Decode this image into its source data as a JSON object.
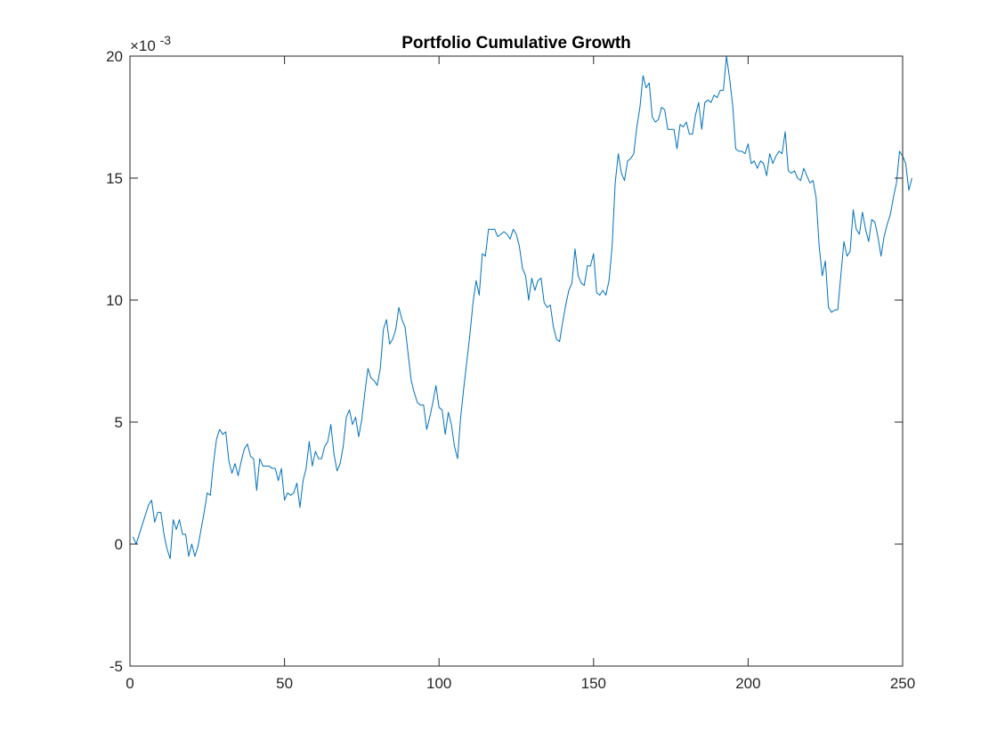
{
  "chart_data": {
    "type": "line",
    "title": "Portfolio Cumulative Growth",
    "xlabel": "",
    "ylabel": "",
    "xlim": [
      0,
      250
    ],
    "ylim": [
      -0.005,
      0.02
    ],
    "y_exponent_label": "×10",
    "y_exponent_power": "-3",
    "x_ticks": [
      {
        "value": 0,
        "label": "0"
      },
      {
        "value": 50,
        "label": "50"
      },
      {
        "value": 100,
        "label": "100"
      },
      {
        "value": 150,
        "label": "150"
      },
      {
        "value": 200,
        "label": "200"
      },
      {
        "value": 250,
        "label": "250"
      }
    ],
    "y_ticks": [
      {
        "value": -0.005,
        "label": "-5"
      },
      {
        "value": 0,
        "label": "0"
      },
      {
        "value": 0.005,
        "label": "5"
      },
      {
        "value": 0.01,
        "label": "10"
      },
      {
        "value": 0.015,
        "label": "15"
      },
      {
        "value": 0.02,
        "label": "20"
      }
    ],
    "grid": false,
    "box": true,
    "series": [
      {
        "color": "#0072BD",
        "x_start": 1,
        "x_step": 1,
        "values": [
          0.0003,
          0.0,
          0.0004,
          0.0008,
          0.0012,
          0.0016,
          0.0018,
          0.0009,
          0.0013,
          0.0013,
          0.0004,
          -0.0002,
          -0.0006,
          0.001,
          0.0006,
          0.001,
          0.0004,
          0.0004,
          -0.0005,
          0.0,
          -0.0005,
          -0.0001,
          0.0006,
          0.0013,
          0.0021,
          0.002,
          0.0033,
          0.0043,
          0.0047,
          0.0045,
          0.0046,
          0.0034,
          0.0029,
          0.0033,
          0.0028,
          0.0034,
          0.0039,
          0.0041,
          0.0036,
          0.0035,
          0.0022,
          0.0035,
          0.0032,
          0.0032,
          0.0032,
          0.0031,
          0.0031,
          0.0026,
          0.0031,
          0.0018,
          0.0021,
          0.002,
          0.0021,
          0.0025,
          0.0015,
          0.0026,
          0.0031,
          0.0042,
          0.0032,
          0.0038,
          0.0035,
          0.0035,
          0.004,
          0.0042,
          0.0049,
          0.0037,
          0.003,
          0.0033,
          0.004,
          0.0052,
          0.0055,
          0.0049,
          0.0052,
          0.0044,
          0.0051,
          0.0062,
          0.0072,
          0.0068,
          0.0067,
          0.0065,
          0.0072,
          0.0088,
          0.0092,
          0.0082,
          0.0084,
          0.0088,
          0.0097,
          0.0092,
          0.0089,
          0.0078,
          0.0067,
          0.0062,
          0.0058,
          0.0057,
          0.0057,
          0.0047,
          0.0052,
          0.0058,
          0.0065,
          0.0056,
          0.0055,
          0.0045,
          0.0054,
          0.0049,
          0.004,
          0.0035,
          0.0052,
          0.0064,
          0.0075,
          0.0086,
          0.0099,
          0.0108,
          0.0102,
          0.0119,
          0.0118,
          0.0129,
          0.0129,
          0.0129,
          0.0126,
          0.0127,
          0.0128,
          0.0127,
          0.0125,
          0.0129,
          0.0127,
          0.0122,
          0.0113,
          0.011,
          0.01,
          0.0109,
          0.0104,
          0.0108,
          0.0109,
          0.0099,
          0.0097,
          0.0098,
          0.0089,
          0.0084,
          0.0083,
          0.0091,
          0.0098,
          0.0104,
          0.0107,
          0.0121,
          0.011,
          0.0107,
          0.0106,
          0.0114,
          0.0114,
          0.0119,
          0.0103,
          0.0102,
          0.0104,
          0.0102,
          0.0108,
          0.0122,
          0.0148,
          0.016,
          0.0152,
          0.0149,
          0.0157,
          0.0158,
          0.016,
          0.0171,
          0.0179,
          0.0192,
          0.0187,
          0.0189,
          0.0175,
          0.0173,
          0.0174,
          0.0179,
          0.0178,
          0.017,
          0.017,
          0.017,
          0.0162,
          0.0172,
          0.0171,
          0.0173,
          0.0168,
          0.0168,
          0.0176,
          0.0181,
          0.017,
          0.0181,
          0.0182,
          0.0181,
          0.0184,
          0.0183,
          0.0186,
          0.0186,
          0.02,
          0.0191,
          0.018,
          0.0162,
          0.0161,
          0.0161,
          0.016,
          0.0164,
          0.0156,
          0.0157,
          0.0154,
          0.0157,
          0.0156,
          0.0151,
          0.016,
          0.0156,
          0.0159,
          0.0161,
          0.016,
          0.0169,
          0.0153,
          0.0152,
          0.0153,
          0.015,
          0.0149,
          0.0154,
          0.0151,
          0.0148,
          0.0149,
          0.0142,
          0.0122,
          0.011,
          0.0116,
          0.0097,
          0.0095,
          0.0096,
          0.0096,
          0.011,
          0.0124,
          0.0118,
          0.012,
          0.0137,
          0.0129,
          0.0127,
          0.0136,
          0.0129,
          0.0124,
          0.0133,
          0.0132,
          0.0126,
          0.0118,
          0.0126,
          0.0131,
          0.0135,
          0.0142,
          0.0148,
          0.0161,
          0.0159,
          0.0156,
          0.0145,
          0.015
        ]
      }
    ]
  }
}
